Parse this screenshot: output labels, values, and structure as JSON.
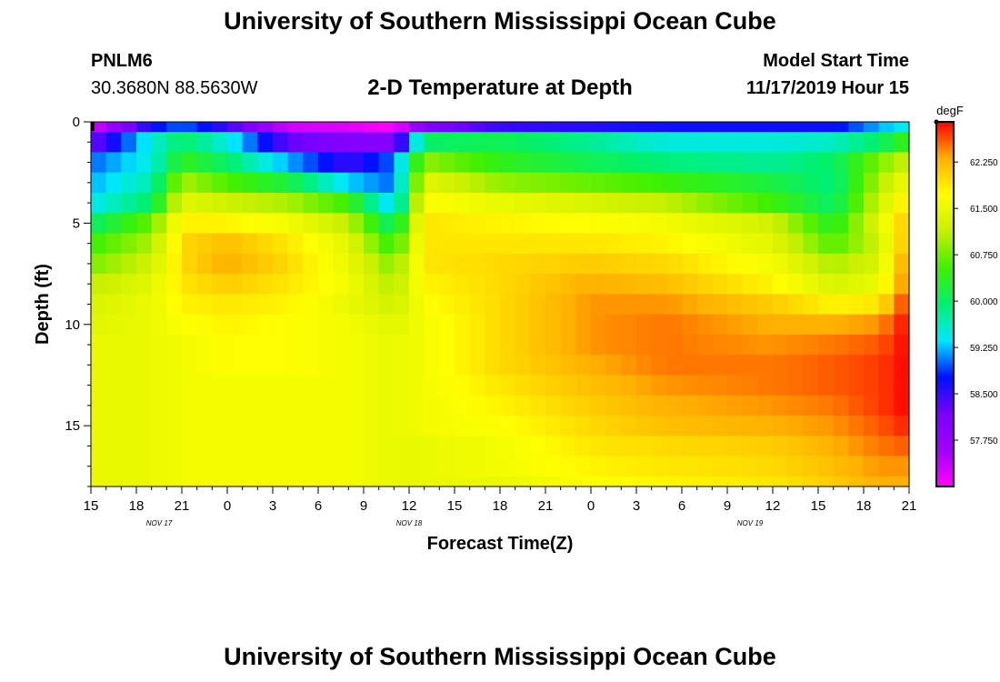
{
  "header": {
    "title": "University of Southern Mississippi Ocean Cube",
    "station": "PNLM6",
    "coords": "30.3680N 88.5630W",
    "plot_title": "2-D Temperature at Depth",
    "model_start_label": "Model Start Time",
    "model_start_value": "11/17/2019 Hour 15"
  },
  "footer": {
    "title": "University of Southern Mississippi Ocean Cube"
  },
  "colorbar": {
    "unit": "degF",
    "ticks": [
      "62.250",
      "61.500",
      "60.750",
      "60.000",
      "59.250",
      "58.500",
      "57.750"
    ],
    "tick_values": [
      62.25,
      61.5,
      60.75,
      60.0,
      59.25,
      58.5,
      57.75
    ],
    "range": [
      57.0,
      62.9
    ],
    "colors": [
      "#ff00ff",
      "#a000ff",
      "#7a00ff",
      "#0010ff",
      "#00e8ff",
      "#00f070",
      "#40f000",
      "#c8f000",
      "#ffff00",
      "#ffb000",
      "#ff0000"
    ]
  },
  "chart_data": {
    "type": "heatmap",
    "xlabel": "Forecast Time(Z)",
    "ylabel": "Depth (ft)",
    "x_tick_labels": [
      "15",
      "18",
      "21",
      "0",
      "3",
      "6",
      "9",
      "12",
      "15",
      "18",
      "21",
      "0",
      "3",
      "6",
      "9",
      "12",
      "15",
      "18",
      "21"
    ],
    "date_labels": [
      {
        "label": "NOV 17",
        "tick_index": 1.5
      },
      {
        "label": "NOV 18",
        "tick_index": 7
      },
      {
        "label": "NOV 19",
        "tick_index": 14.5
      }
    ],
    "y_tick_labels": [
      "0",
      "5",
      "10",
      "15"
    ],
    "y_tick_values": [
      0,
      5,
      10,
      15
    ],
    "ylim": [
      0,
      18
    ],
    "xlim_hours": [
      0,
      54
    ],
    "x_labeled_tick_step_hours": 3,
    "x_minor_tick_step_hours": 1,
    "y_minor_tick_step": 1,
    "anchor_times_hours": [
      0,
      4,
      6,
      9,
      13,
      17,
      20,
      22,
      27,
      33,
      38,
      45,
      49,
      52,
      54
    ],
    "anchor_depths_ft": [
      0,
      1,
      2,
      3,
      4,
      5,
      6,
      7,
      8,
      9,
      10,
      11,
      12,
      13,
      14,
      15,
      16,
      17,
      18
    ],
    "temperature_degF": [
      [
        57.2,
        58.7,
        59.0,
        58.5,
        57.3,
        57.2,
        57.0,
        58.0,
        58.5,
        58.6,
        58.7,
        58.7,
        58.7,
        59.2,
        59.5
      ],
      [
        58.2,
        59.5,
        60.0,
        59.5,
        58.3,
        58.0,
        58.0,
        60.0,
        60.1,
        59.8,
        59.5,
        59.5,
        59.6,
        60.0,
        60.5
      ],
      [
        59.0,
        59.5,
        60.4,
        60.0,
        59.2,
        58.5,
        59.0,
        60.9,
        60.4,
        60.1,
        59.9,
        59.8,
        60.0,
        60.8,
        61.2
      ],
      [
        59.2,
        59.7,
        61.0,
        60.6,
        60.2,
        59.3,
        59.0,
        61.4,
        60.9,
        60.7,
        60.5,
        60.2,
        59.9,
        61.0,
        61.6
      ],
      [
        59.4,
        60.0,
        61.4,
        61.2,
        61.0,
        60.5,
        59.2,
        61.7,
        61.5,
        61.3,
        61.1,
        60.5,
        60.0,
        61.2,
        62.0
      ],
      [
        60.0,
        60.7,
        61.8,
        61.8,
        61.6,
        61.1,
        59.9,
        61.9,
        61.8,
        61.7,
        61.6,
        61.2,
        60.3,
        61.4,
        62.2
      ],
      [
        60.5,
        61.0,
        62.0,
        62.2,
        61.9,
        61.4,
        60.4,
        61.9,
        61.9,
        61.9,
        61.8,
        61.4,
        60.6,
        61.2,
        62.3
      ],
      [
        60.8,
        61.2,
        62.0,
        62.3,
        62.0,
        61.5,
        60.8,
        61.9,
        62.0,
        62.1,
        62.0,
        61.6,
        61.0,
        61.3,
        62.5
      ],
      [
        61.1,
        61.4,
        61.9,
        62.1,
        61.9,
        61.6,
        61.0,
        61.8,
        62.0,
        62.3,
        62.2,
        61.8,
        61.3,
        61.5,
        62.6
      ],
      [
        61.3,
        61.5,
        61.8,
        61.9,
        61.8,
        61.5,
        61.2,
        61.7,
        62.0,
        62.4,
        62.4,
        62.1,
        61.8,
        61.9,
        62.8
      ],
      [
        61.4,
        61.5,
        61.7,
        61.8,
        61.7,
        61.6,
        61.4,
        61.6,
        62.0,
        62.4,
        62.5,
        62.3,
        62.3,
        62.4,
        62.9
      ],
      [
        61.5,
        61.5,
        61.6,
        61.7,
        61.7,
        61.6,
        61.5,
        61.6,
        62.0,
        62.4,
        62.5,
        62.4,
        62.5,
        62.6,
        62.9
      ],
      [
        61.5,
        61.5,
        61.6,
        61.7,
        61.7,
        61.6,
        61.5,
        61.6,
        62.0,
        62.3,
        62.5,
        62.5,
        62.6,
        62.7,
        62.9
      ],
      [
        61.5,
        61.5,
        61.6,
        61.6,
        61.6,
        61.6,
        61.5,
        61.6,
        61.9,
        62.2,
        62.4,
        62.5,
        62.6,
        62.7,
        62.9
      ],
      [
        61.5,
        61.5,
        61.6,
        61.6,
        61.6,
        61.6,
        61.5,
        61.6,
        61.8,
        62.1,
        62.3,
        62.4,
        62.5,
        62.7,
        62.9
      ],
      [
        61.5,
        61.5,
        61.6,
        61.6,
        61.6,
        61.6,
        61.5,
        61.6,
        61.7,
        62.0,
        62.2,
        62.3,
        62.4,
        62.6,
        62.8
      ],
      [
        61.5,
        61.5,
        61.6,
        61.6,
        61.6,
        61.6,
        61.5,
        61.5,
        61.6,
        61.9,
        62.0,
        62.1,
        62.3,
        62.5,
        62.6
      ],
      [
        61.5,
        61.5,
        61.6,
        61.6,
        61.6,
        61.6,
        61.5,
        61.5,
        61.6,
        61.8,
        61.9,
        62.0,
        62.2,
        62.4,
        62.4
      ],
      [
        61.5,
        61.5,
        61.6,
        61.6,
        61.6,
        61.6,
        61.5,
        61.5,
        61.5,
        61.7,
        61.8,
        61.9,
        62.1,
        62.3,
        62.3
      ]
    ]
  }
}
